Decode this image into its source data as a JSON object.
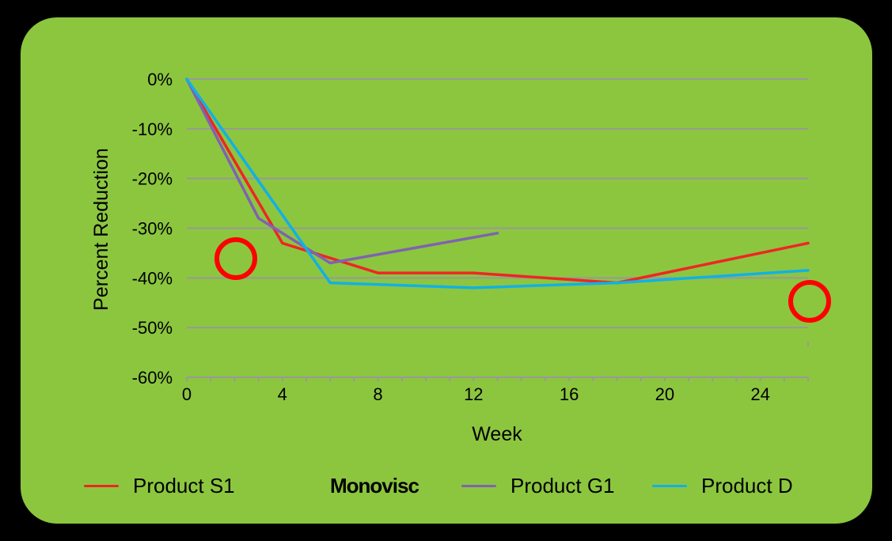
{
  "chart_data": {
    "type": "line",
    "title": "",
    "xlabel": "Week",
    "ylabel": "Percent Reduction",
    "xlim": [
      0,
      26
    ],
    "ylim": [
      -60,
      0
    ],
    "x_ticks": [
      0,
      4,
      8,
      12,
      16,
      20,
      24
    ],
    "x_tick_labels": [
      "0",
      "4",
      "8",
      "12",
      "16",
      "20",
      "24"
    ],
    "y_ticks": [
      0,
      -10,
      -20,
      -30,
      -40,
      -50,
      -60
    ],
    "y_tick_labels": [
      "0%",
      "-10%",
      "-20%",
      "-30%",
      "-40%",
      "-50%",
      "-60%"
    ],
    "grid": "horizontal",
    "legend_position": "bottom",
    "series": [
      {
        "name": "Product S1",
        "color": "#ee2624",
        "x": [
          0,
          4,
          8,
          12,
          18,
          26
        ],
        "values": [
          0,
          -33,
          -39,
          -39,
          -41,
          -33
        ]
      },
      {
        "name": "Product G1",
        "color": "#7f63b0",
        "x": [
          0,
          3,
          6,
          13
        ],
        "values": [
          0,
          -28,
          -37,
          -31
        ]
      },
      {
        "name": "Product D",
        "color": "#12b0e6",
        "x": [
          0,
          6,
          12,
          18,
          26
        ],
        "values": [
          0,
          -41,
          -42,
          -41,
          -38.5
        ]
      }
    ],
    "legend_extra_label": "Monovisc",
    "annotations": [
      {
        "type": "circle",
        "color": "#ff0000",
        "note": "red circle near week 2, -37%"
      },
      {
        "type": "circle",
        "color": "#ff0000",
        "note": "red circle near week 26, -45%"
      }
    ]
  },
  "legend": {
    "items": [
      {
        "label": "Product S1",
        "color": "#ee2624"
      },
      {
        "label": "Monovisc",
        "color": null
      },
      {
        "label": "Product G1",
        "color": "#7f63b0"
      },
      {
        "label": "Product D",
        "color": "#12b0e6"
      }
    ]
  },
  "colors": {
    "panel": "#8cc63f",
    "grid": "#999999",
    "background": "#000000",
    "annotation": "#ff0000"
  }
}
